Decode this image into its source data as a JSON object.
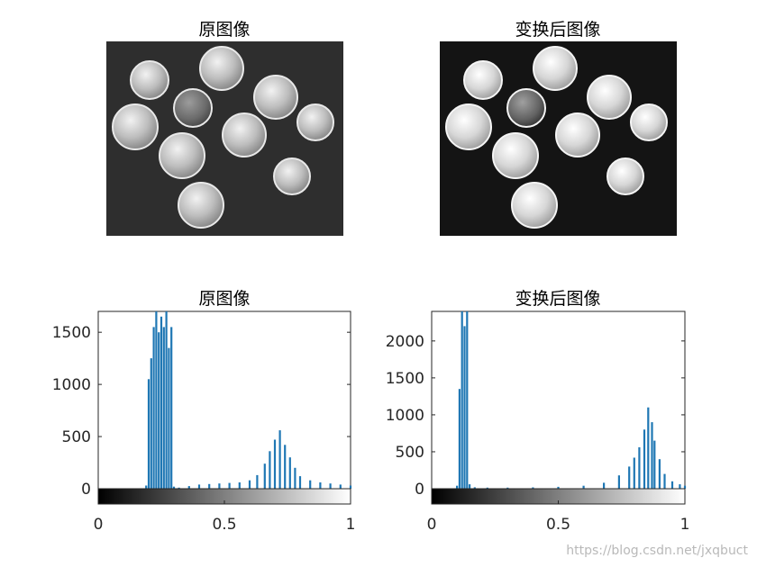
{
  "panels": {
    "top_left_title": "原图像",
    "top_right_title": "变换后图像",
    "bottom_left_title": "原图像",
    "bottom_right_title": "变换后图像"
  },
  "watermark": "https://blog.csdn.net/jxqbuct",
  "colors": {
    "bar": "#1f77b4",
    "photo_bg_left": "#2e2e2e",
    "photo_bg_right": "#141414"
  },
  "chart_data": [
    {
      "type": "bar",
      "title": "原图像",
      "xlabel": "",
      "ylabel": "",
      "xlim": [
        0,
        1
      ],
      "ylim": [
        0,
        1700
      ],
      "xticks": [
        0,
        0.5,
        1
      ],
      "xtick_labels": [
        "0",
        "0.5",
        "1"
      ],
      "yticks": [
        0,
        500,
        1000,
        1500
      ],
      "ytick_labels": [
        "0",
        "500",
        "1000",
        "1500"
      ],
      "grayscale_colorbar": true,
      "series": [
        {
          "x": [
            0.19,
            0.2,
            0.21,
            0.22,
            0.23,
            0.24,
            0.25,
            0.26,
            0.27,
            0.28,
            0.29,
            0.3,
            0.32,
            0.36,
            0.4,
            0.44,
            0.48,
            0.52,
            0.56,
            0.6,
            0.63,
            0.66,
            0.68,
            0.7,
            0.72,
            0.74,
            0.76,
            0.78,
            0.8,
            0.84,
            0.88,
            0.92,
            0.96,
            1.0
          ],
          "values": [
            30,
            1050,
            1250,
            1550,
            1700,
            1500,
            1650,
            1550,
            1700,
            1350,
            1550,
            20,
            10,
            25,
            40,
            45,
            50,
            55,
            60,
            80,
            130,
            240,
            360,
            470,
            560,
            420,
            300,
            200,
            120,
            80,
            60,
            50,
            40,
            30
          ]
        }
      ]
    },
    {
      "type": "bar",
      "title": "变换后图像",
      "xlabel": "",
      "ylabel": "",
      "xlim": [
        0,
        1
      ],
      "ylim": [
        0,
        2400
      ],
      "xticks": [
        0,
        0.5,
        1
      ],
      "xtick_labels": [
        "0",
        "0.5",
        "1"
      ],
      "yticks": [
        0,
        500,
        1000,
        1500,
        2000
      ],
      "ytick_labels": [
        "0",
        "500",
        "1000",
        "1500",
        "2000"
      ],
      "grayscale_colorbar": true,
      "series": [
        {
          "x": [
            0.1,
            0.11,
            0.12,
            0.13,
            0.14,
            0.15,
            0.17,
            0.22,
            0.3,
            0.4,
            0.5,
            0.6,
            0.68,
            0.74,
            0.78,
            0.8,
            0.82,
            0.84,
            0.855,
            0.87,
            0.88,
            0.9,
            0.92,
            0.95,
            0.98,
            1.0
          ],
          "values": [
            40,
            1350,
            2400,
            2200,
            2400,
            60,
            20,
            15,
            15,
            18,
            25,
            40,
            80,
            180,
            300,
            420,
            560,
            800,
            1100,
            900,
            650,
            400,
            200,
            100,
            60,
            40
          ]
        }
      ]
    }
  ]
}
